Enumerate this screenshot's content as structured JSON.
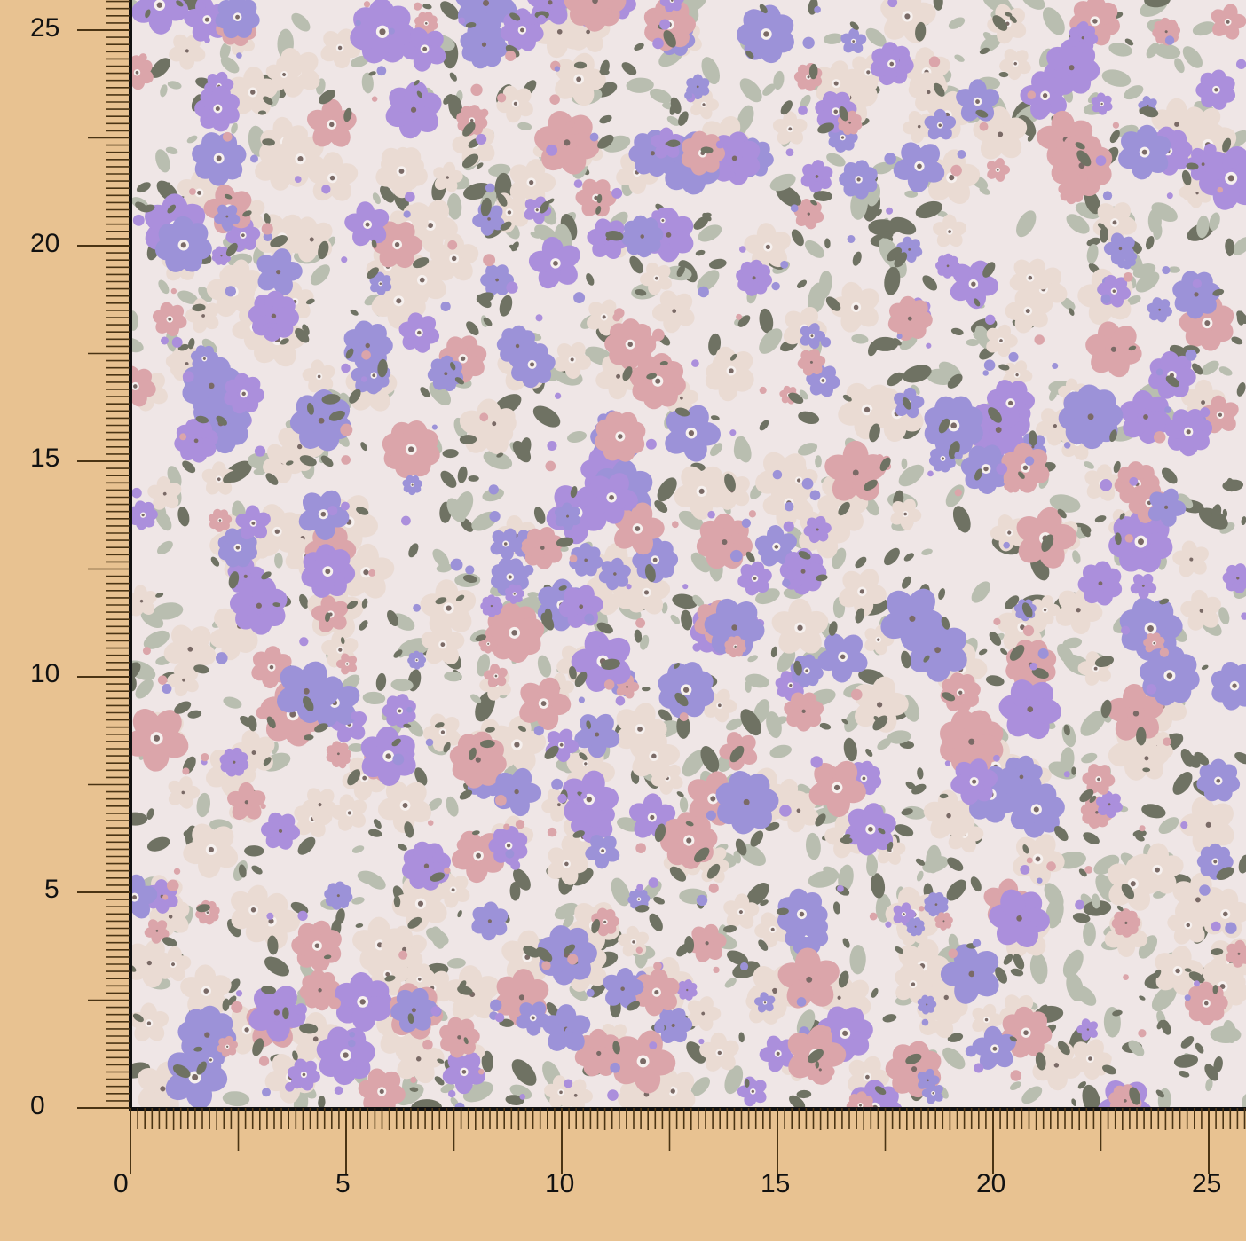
{
  "ruler": {
    "vertical_labels": [
      "0",
      "5",
      "10",
      "15",
      "20",
      "25"
    ],
    "horizontal_labels": [
      "0",
      "5",
      "10",
      "15",
      "20",
      "25"
    ],
    "subdivisions_per_unit": 6,
    "color_background": "#e8c291",
    "color_ticks": "#4a3414"
  },
  "fabric": {
    "pattern": "ditsy floral print",
    "colors": {
      "ground": "#efe6e6",
      "beige_flower": "#eadbd3",
      "pink_flower": "#dba5aa",
      "lavender_flower": "#9c92d8",
      "purple_flower": "#ab8fdc",
      "sage_leaf": "#b9beb0",
      "dark_leaf": "#6f7263",
      "flower_center": "#7a6a66"
    }
  }
}
